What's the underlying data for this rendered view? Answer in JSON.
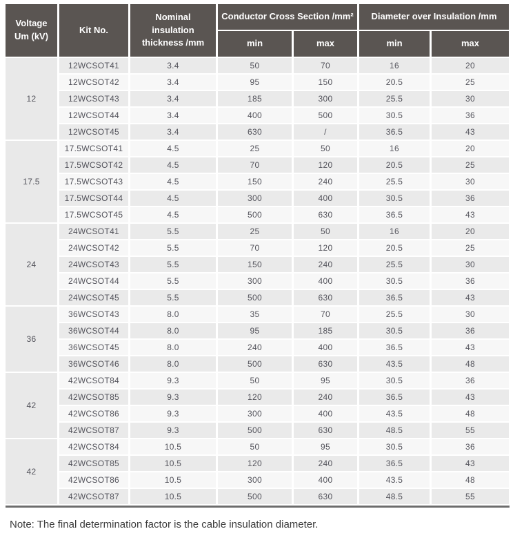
{
  "table": {
    "header": {
      "voltage_line1": "Voltage",
      "voltage_line2": "Um (kV)",
      "kit_no": "Kit No.",
      "thickness_line1": "Nominal insulation",
      "thickness_line2": "thickness /mm",
      "conductor_group": "Conductor Cross Section /mm²",
      "diameter_group": "Diameter over Insulation /mm",
      "min": "min",
      "max": "max"
    },
    "groups": [
      {
        "voltage": "12",
        "rows": [
          {
            "kit": "12WCSOT41",
            "thickness": "3.4",
            "ccs_min": "50",
            "ccs_max": "70",
            "doi_min": "16",
            "doi_max": "20"
          },
          {
            "kit": "12WCSOT42",
            "thickness": "3.4",
            "ccs_min": "95",
            "ccs_max": "150",
            "doi_min": "20.5",
            "doi_max": "25"
          },
          {
            "kit": "12WCSOT43",
            "thickness": "3.4",
            "ccs_min": "185",
            "ccs_max": "300",
            "doi_min": "25.5",
            "doi_max": "30"
          },
          {
            "kit": "12WCSOT44",
            "thickness": "3.4",
            "ccs_min": "400",
            "ccs_max": "500",
            "doi_min": "30.5",
            "doi_max": "36"
          },
          {
            "kit": "12WCSOT45",
            "thickness": "3.4",
            "ccs_min": "630",
            "ccs_max": "/",
            "doi_min": "36.5",
            "doi_max": "43"
          }
        ]
      },
      {
        "voltage": "17.5",
        "rows": [
          {
            "kit": "17.5WCSOT41",
            "thickness": "4.5",
            "ccs_min": "25",
            "ccs_max": "50",
            "doi_min": "16",
            "doi_max": "20"
          },
          {
            "kit": "17.5WCSOT42",
            "thickness": "4.5",
            "ccs_min": "70",
            "ccs_max": "120",
            "doi_min": "20.5",
            "doi_max": "25"
          },
          {
            "kit": "17.5WCSOT43",
            "thickness": "4.5",
            "ccs_min": "150",
            "ccs_max": "240",
            "doi_min": "25.5",
            "doi_max": "30"
          },
          {
            "kit": "17.5WCSOT44",
            "thickness": "4.5",
            "ccs_min": "300",
            "ccs_max": "400",
            "doi_min": "30.5",
            "doi_max": "36"
          },
          {
            "kit": "17.5WCSOT45",
            "thickness": "4.5",
            "ccs_min": "500",
            "ccs_max": "630",
            "doi_min": "36.5",
            "doi_max": "43"
          }
        ]
      },
      {
        "voltage": "24",
        "rows": [
          {
            "kit": "24WCSOT41",
            "thickness": "5.5",
            "ccs_min": "25",
            "ccs_max": "50",
            "doi_min": "16",
            "doi_max": "20"
          },
          {
            "kit": "24WCSOT42",
            "thickness": "5.5",
            "ccs_min": "70",
            "ccs_max": "120",
            "doi_min": "20.5",
            "doi_max": "25"
          },
          {
            "kit": "24WCSOT43",
            "thickness": "5.5",
            "ccs_min": "150",
            "ccs_max": "240",
            "doi_min": "25.5",
            "doi_max": "30"
          },
          {
            "kit": "24WCSOT44",
            "thickness": "5.5",
            "ccs_min": "300",
            "ccs_max": "400",
            "doi_min": "30.5",
            "doi_max": "36"
          },
          {
            "kit": "24WCSOT45",
            "thickness": "5.5",
            "ccs_min": "500",
            "ccs_max": "630",
            "doi_min": "36.5",
            "doi_max": "43"
          }
        ]
      },
      {
        "voltage": "36",
        "rows": [
          {
            "kit": "36WCSOT43",
            "thickness": "8.0",
            "ccs_min": "35",
            "ccs_max": "70",
            "doi_min": "25.5",
            "doi_max": "30"
          },
          {
            "kit": "36WCSOT44",
            "thickness": "8.0",
            "ccs_min": "95",
            "ccs_max": "185",
            "doi_min": "30.5",
            "doi_max": "36"
          },
          {
            "kit": "36WCSOT45",
            "thickness": "8.0",
            "ccs_min": "240",
            "ccs_max": "400",
            "doi_min": "36.5",
            "doi_max": "43"
          },
          {
            "kit": "36WCSOT46",
            "thickness": "8.0",
            "ccs_min": "500",
            "ccs_max": "630",
            "doi_min": "43.5",
            "doi_max": "48"
          }
        ]
      },
      {
        "voltage": "42",
        "rows": [
          {
            "kit": "42WCSOT84",
            "thickness": "9.3",
            "ccs_min": "50",
            "ccs_max": "95",
            "doi_min": "30.5",
            "doi_max": "36"
          },
          {
            "kit": "42WCSOT85",
            "thickness": "9.3",
            "ccs_min": "120",
            "ccs_max": "240",
            "doi_min": "36.5",
            "doi_max": "43"
          },
          {
            "kit": "42WCSOT86",
            "thickness": "9.3",
            "ccs_min": "300",
            "ccs_max": "400",
            "doi_min": "43.5",
            "doi_max": "48"
          },
          {
            "kit": "42WCSOT87",
            "thickness": "9.3",
            "ccs_min": "500",
            "ccs_max": "630",
            "doi_min": "48.5",
            "doi_max": "55"
          }
        ]
      },
      {
        "voltage": "42",
        "rows": [
          {
            "kit": "42WCSOT84",
            "thickness": "10.5",
            "ccs_min": "50",
            "ccs_max": "95",
            "doi_min": "30.5",
            "doi_max": "36"
          },
          {
            "kit": "42WCSOT85",
            "thickness": "10.5",
            "ccs_min": "120",
            "ccs_max": "240",
            "doi_min": "36.5",
            "doi_max": "43"
          },
          {
            "kit": "42WCSOT86",
            "thickness": "10.5",
            "ccs_min": "300",
            "ccs_max": "400",
            "doi_min": "43.5",
            "doi_max": "48"
          },
          {
            "kit": "42WCSOT87",
            "thickness": "10.5",
            "ccs_min": "500",
            "ccs_max": "630",
            "doi_min": "48.5",
            "doi_max": "55"
          }
        ]
      }
    ]
  },
  "note": "Note: The final determination factor is the cable insulation diameter.",
  "colors": {
    "header_bg": "#5a5552",
    "header_text": "#ffffff",
    "stripe_dark": "#eaeaea",
    "stripe_light": "#f7f7f7",
    "voltage_cell_bg": "#e9e9e9",
    "bottom_bar": "#6d6d6d",
    "body_text": "#53535b"
  }
}
